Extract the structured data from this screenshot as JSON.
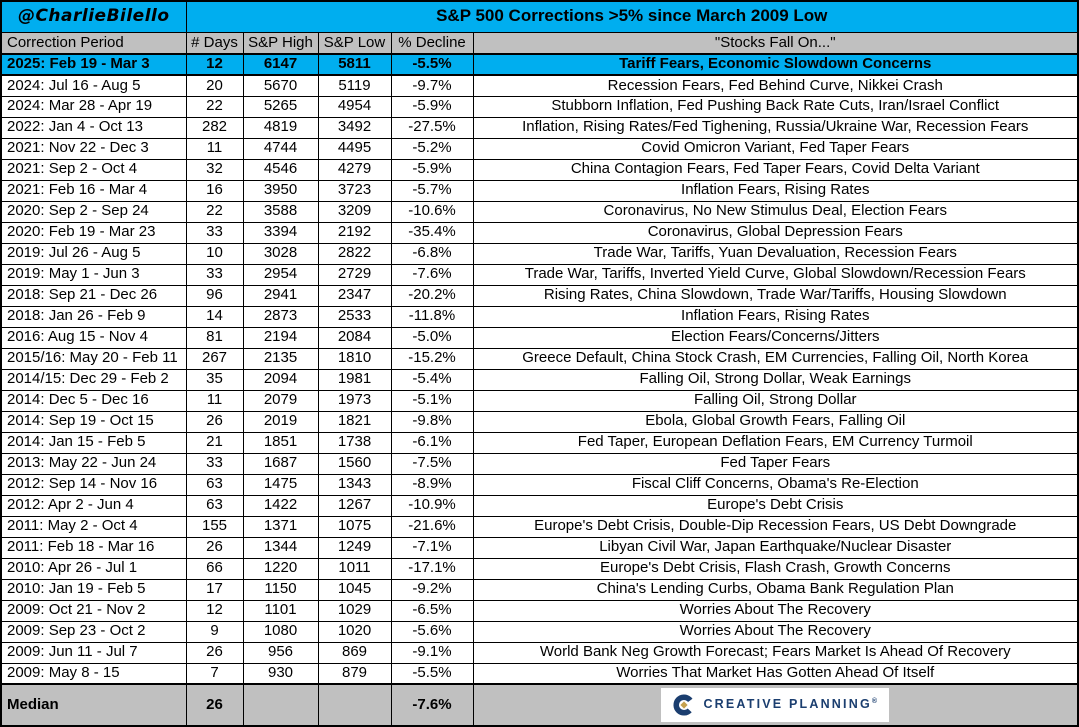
{
  "handle": "@CharlieBilello",
  "chart_data": {
    "type": "table",
    "title": "S&P 500 Corrections >5% since March 2009 Low",
    "columns": [
      "Correction Period",
      "# Days",
      "S&P High",
      "S&P Low",
      "% Decline",
      "\"Stocks Fall On...\""
    ],
    "rows": [
      {
        "period": "2025: Feb 19 - Mar 3",
        "days": "12",
        "high": "6147",
        "low": "5811",
        "decline": "-5.5%",
        "reason": "Tariff Fears, Economic Slowdown Concerns",
        "highlight": true
      },
      {
        "period": "2024: Jul 16 - Aug 5",
        "days": "20",
        "high": "5670",
        "low": "5119",
        "decline": "-9.7%",
        "reason": "Recession Fears, Fed Behind Curve, Nikkei Crash"
      },
      {
        "period": "2024: Mar 28 - Apr 19",
        "days": "22",
        "high": "5265",
        "low": "4954",
        "decline": "-5.9%",
        "reason": "Stubborn Inflation, Fed Pushing Back Rate Cuts, Iran/Israel Conflict"
      },
      {
        "period": "2022: Jan 4 - Oct 13",
        "days": "282",
        "high": "4819",
        "low": "3492",
        "decline": "-27.5%",
        "reason": "Inflation, Rising Rates/Fed Tighening, Russia/Ukraine War, Recession Fears"
      },
      {
        "period": "2021: Nov 22 - Dec 3",
        "days": "11",
        "high": "4744",
        "low": "4495",
        "decline": "-5.2%",
        "reason": "Covid Omicron Variant, Fed Taper Fears"
      },
      {
        "period": "2021: Sep 2 - Oct 4",
        "days": "32",
        "high": "4546",
        "low": "4279",
        "decline": "-5.9%",
        "reason": "China Contagion Fears, Fed Taper Fears, Covid Delta Variant"
      },
      {
        "period": "2021: Feb 16 - Mar 4",
        "days": "16",
        "high": "3950",
        "low": "3723",
        "decline": "-5.7%",
        "reason": "Inflation Fears, Rising Rates"
      },
      {
        "period": "2020: Sep 2 - Sep 24",
        "days": "22",
        "high": "3588",
        "low": "3209",
        "decline": "-10.6%",
        "reason": "Coronavirus, No New Stimulus Deal, Election Fears"
      },
      {
        "period": "2020: Feb 19 - Mar 23",
        "days": "33",
        "high": "3394",
        "low": "2192",
        "decline": "-35.4%",
        "reason": "Coronavirus, Global Depression Fears"
      },
      {
        "period": "2019: Jul 26 - Aug 5",
        "days": "10",
        "high": "3028",
        "low": "2822",
        "decline": "-6.8%",
        "reason": "Trade War, Tariffs, Yuan Devaluation, Recession Fears"
      },
      {
        "period": "2019: May 1 - Jun 3",
        "days": "33",
        "high": "2954",
        "low": "2729",
        "decline": "-7.6%",
        "reason": "Trade War, Tariffs, Inverted Yield Curve, Global Slowdown/Recession Fears"
      },
      {
        "period": "2018: Sep 21 - Dec 26",
        "days": "96",
        "high": "2941",
        "low": "2347",
        "decline": "-20.2%",
        "reason": "Rising Rates, China Slowdown, Trade War/Tariffs, Housing Slowdown"
      },
      {
        "period": "2018: Jan 26 - Feb 9",
        "days": "14",
        "high": "2873",
        "low": "2533",
        "decline": "-11.8%",
        "reason": "Inflation Fears, Rising Rates"
      },
      {
        "period": "2016: Aug 15 - Nov 4",
        "days": "81",
        "high": "2194",
        "low": "2084",
        "decline": "-5.0%",
        "reason": "Election Fears/Concerns/Jitters"
      },
      {
        "period": "2015/16: May 20 - Feb 11",
        "days": "267",
        "high": "2135",
        "low": "1810",
        "decline": "-15.2%",
        "reason": "Greece Default, China Stock Crash, EM Currencies, Falling Oil, North Korea"
      },
      {
        "period": "2014/15: Dec 29 - Feb 2",
        "days": "35",
        "high": "2094",
        "low": "1981",
        "decline": "-5.4%",
        "reason": "Falling Oil, Strong Dollar, Weak Earnings"
      },
      {
        "period": "2014: Dec 5 - Dec 16",
        "days": "11",
        "high": "2079",
        "low": "1973",
        "decline": "-5.1%",
        "reason": "Falling Oil, Strong Dollar"
      },
      {
        "period": "2014: Sep 19 - Oct 15",
        "days": "26",
        "high": "2019",
        "low": "1821",
        "decline": "-9.8%",
        "reason": "Ebola, Global Growth Fears, Falling Oil"
      },
      {
        "period": "2014: Jan 15 - Feb 5",
        "days": "21",
        "high": "1851",
        "low": "1738",
        "decline": "-6.1%",
        "reason": "Fed Taper, European Deflation Fears, EM Currency Turmoil"
      },
      {
        "period": "2013: May 22 - Jun 24",
        "days": "33",
        "high": "1687",
        "low": "1560",
        "decline": "-7.5%",
        "reason": "Fed Taper Fears"
      },
      {
        "period": "2012: Sep 14 - Nov 16",
        "days": "63",
        "high": "1475",
        "low": "1343",
        "decline": "-8.9%",
        "reason": "Fiscal Cliff Concerns, Obama's Re-Election"
      },
      {
        "period": "2012: Apr 2 - Jun 4",
        "days": "63",
        "high": "1422",
        "low": "1267",
        "decline": "-10.9%",
        "reason": "Europe's Debt Crisis"
      },
      {
        "period": "2011: May 2 - Oct 4",
        "days": "155",
        "high": "1371",
        "low": "1075",
        "decline": "-21.6%",
        "reason": "Europe's Debt Crisis, Double-Dip Recession Fears, US Debt Downgrade"
      },
      {
        "period": "2011: Feb 18 - Mar 16",
        "days": "26",
        "high": "1344",
        "low": "1249",
        "decline": "-7.1%",
        "reason": "Libyan Civil War, Japan Earthquake/Nuclear Disaster"
      },
      {
        "period": "2010: Apr 26 - Jul 1",
        "days": "66",
        "high": "1220",
        "low": "1011",
        "decline": "-17.1%",
        "reason": "Europe's Debt Crisis, Flash Crash, Growth Concerns"
      },
      {
        "period": "2010: Jan 19 - Feb 5",
        "days": "17",
        "high": "1150",
        "low": "1045",
        "decline": "-9.2%",
        "reason": "China's Lending Curbs, Obama Bank Regulation Plan"
      },
      {
        "period": "2009: Oct 21 - Nov 2",
        "days": "12",
        "high": "1101",
        "low": "1029",
        "decline": "-6.5%",
        "reason": "Worries About The Recovery"
      },
      {
        "period": "2009: Sep 23 - Oct 2",
        "days": "9",
        "high": "1080",
        "low": "1020",
        "decline": "-5.6%",
        "reason": "Worries About The Recovery"
      },
      {
        "period": "2009: Jun 11 - Jul 7",
        "days": "26",
        "high": "956",
        "low": "869",
        "decline": "-9.1%",
        "reason": "World Bank Neg Growth Forecast; Fears Market Is Ahead Of Recovery"
      },
      {
        "period": "2009: May 8 - 15",
        "days": "7",
        "high": "930",
        "low": "879",
        "decline": "-5.5%",
        "reason": "Worries That Market Has Gotten Ahead Of Itself"
      }
    ],
    "median": {
      "label": "Median",
      "days": "26",
      "high": "",
      "low": "",
      "decline": "-7.6%"
    }
  },
  "footer": {
    "logo_text": "CREATIVE PLANNING",
    "reg_mark": "®"
  },
  "colors": {
    "accent_cyan": "#00AEEF",
    "header_gray": "#C0C0C0",
    "logo_navy": "#1B3E6F",
    "logo_gold": "#C5A14E"
  }
}
